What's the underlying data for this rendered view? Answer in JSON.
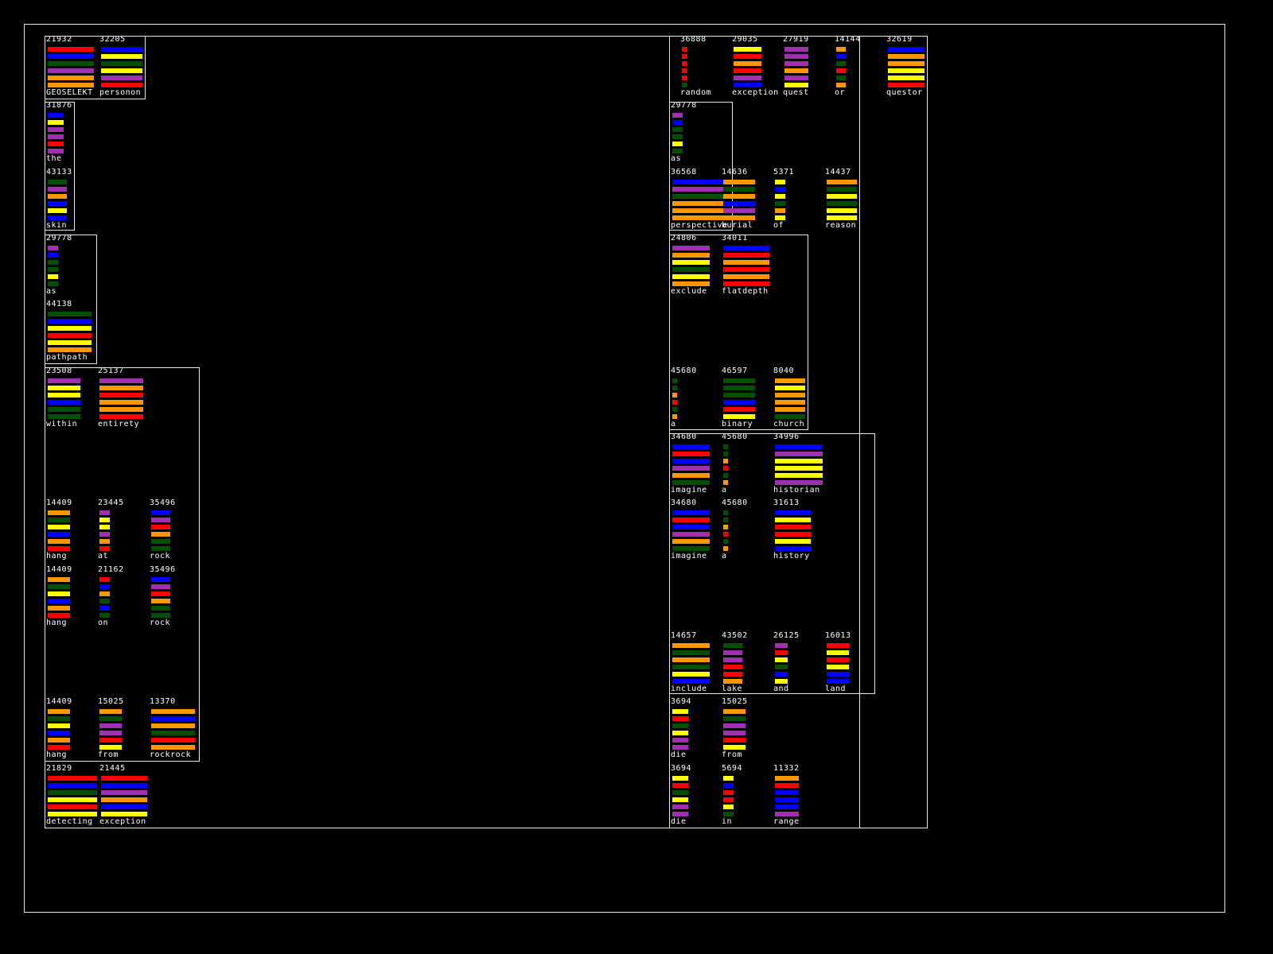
{
  "colors": {
    "R": "#ff0000",
    "B": "#0000ff",
    "Y": "#ffff00",
    "G": "#005000",
    "P": "#a030b0",
    "O": "#ff9800"
  },
  "items": [
    {
      "n": "21932",
      "w": "GEOSELEKT",
      "bars": "RBGPOO"
    },
    {
      "n": "32205",
      "w": "personon",
      "bars": "BYGYPR"
    },
    {
      "n": "31876",
      "w": "the",
      "bars": "BYPPRP"
    },
    {
      "n": "43133",
      "w": "skin",
      "bars": "GPOBYB"
    },
    {
      "n": "29778",
      "w": "as",
      "bars": "PBGGYG"
    },
    {
      "n": "44138",
      "w": "pathpath",
      "bars": "GBYRYO"
    },
    {
      "n": "23508",
      "w": "within",
      "bars": "PYYBGG"
    },
    {
      "n": "25137",
      "w": "entirety",
      "bars": "POROOR"
    },
    {
      "n": "14409",
      "w": "hang",
      "bars": "OGYBOR"
    },
    {
      "n": "23445",
      "w": "at",
      "bars": "PYYPOR"
    },
    {
      "n": "35496",
      "w": "rock",
      "bars": "BPROGG"
    },
    {
      "n": "14409",
      "w": "hang",
      "bars": "OGYBOR"
    },
    {
      "n": "21162",
      "w": "on",
      "bars": "RBOGBG"
    },
    {
      "n": "35496",
      "w": "rock",
      "bars": "BPROGG"
    },
    {
      "n": "14409",
      "w": "hang",
      "bars": "OGYBOR"
    },
    {
      "n": "15025",
      "w": "from",
      "bars": "OGPPRY"
    },
    {
      "n": "13370",
      "w": "rockrock",
      "bars": "OBOGRO"
    },
    {
      "n": "21829",
      "w": "detecting",
      "bars": "RBGYRY"
    },
    {
      "n": "21445",
      "w": "exception",
      "bars": "RBPOBY"
    },
    {
      "n": "36888",
      "w": "random",
      "bars": "RRRRRG"
    },
    {
      "n": "29035",
      "w": "exception",
      "bars": "YRORPB"
    },
    {
      "n": "27919",
      "w": "quest",
      "bars": "PPPOPY"
    },
    {
      "n": "14144",
      "w": "or",
      "bars": "OBGRGO"
    },
    {
      "n": "32619",
      "w": "questor",
      "bars": "BOOYYR"
    },
    {
      "n": "29778",
      "w": "as",
      "bars": "PBGGYG"
    },
    {
      "n": "36568",
      "w": "perspective",
      "bars": "BPGOOO"
    },
    {
      "n": "14636",
      "w": "burial",
      "bars": "OGOBPO"
    },
    {
      "n": "5371",
      "w": "of",
      "bars": "YBYGOY"
    },
    {
      "n": "14437",
      "w": "reason",
      "bars": "OGYGYY"
    },
    {
      "n": "24806",
      "w": "exclude",
      "bars": "POYGYO"
    },
    {
      "n": "34011",
      "w": "flatdepth",
      "bars": "BROROR"
    },
    {
      "n": "45680",
      "w": "a",
      "bars": "GGORGO"
    },
    {
      "n": "46597",
      "w": "binary",
      "bars": "GGGBRY"
    },
    {
      "n": "8040",
      "w": "church",
      "bars": "OYOOOG"
    },
    {
      "n": "34680",
      "w": "imagine",
      "bars": "BRBPOG"
    },
    {
      "n": "45680",
      "w": "a",
      "bars": "GGORGO"
    },
    {
      "n": "34996",
      "w": "historian",
      "bars": "BPYYYP"
    },
    {
      "n": "34680",
      "w": "imagine",
      "bars": "BRBPOG"
    },
    {
      "n": "45680",
      "w": "a",
      "bars": "GGORGO"
    },
    {
      "n": "31613",
      "w": "history",
      "bars": "BYRRYB"
    },
    {
      "n": "14657",
      "w": "include",
      "bars": "OGOGYB"
    },
    {
      "n": "43502",
      "w": "lake",
      "bars": "GPPRRO"
    },
    {
      "n": "26125",
      "w": "and",
      "bars": "PRYGBY"
    },
    {
      "n": "16013",
      "w": "land",
      "bars": "RYRYBB"
    },
    {
      "n": "3694",
      "w": "die",
      "bars": "YRGYPP"
    },
    {
      "n": "15025",
      "w": "from",
      "bars": "OGPPRY"
    },
    {
      "n": "3694",
      "w": "die",
      "bars": "YRGYPP"
    },
    {
      "n": "5694",
      "w": "in",
      "bars": "YBRRYG"
    },
    {
      "n": "11332",
      "w": "range",
      "bars": "ORBBBP"
    }
  ]
}
